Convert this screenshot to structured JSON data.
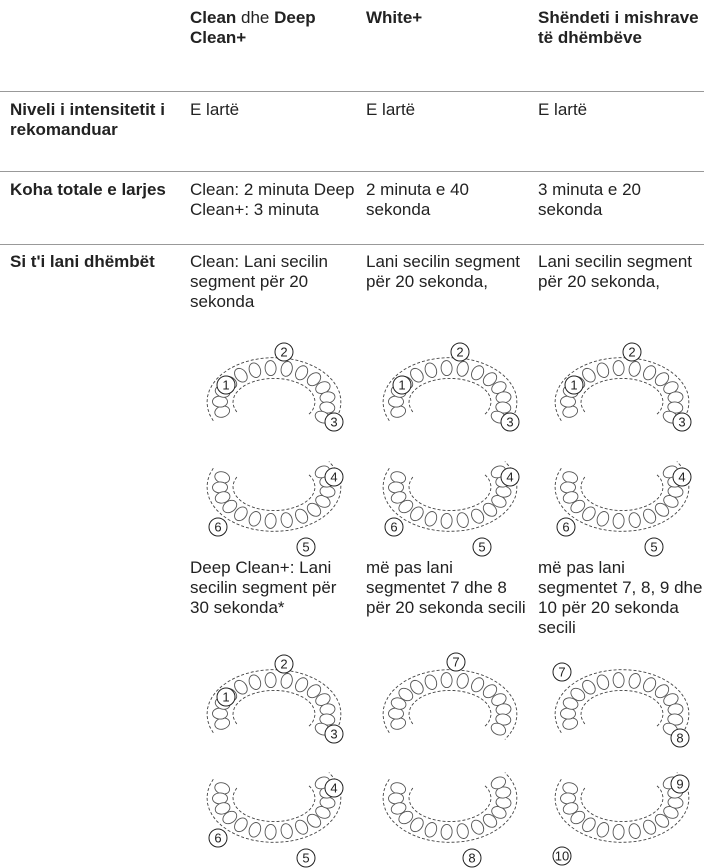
{
  "table": {
    "header": [
      [
        {
          "text": "Clean",
          "bold": true
        },
        {
          "text": " dhe ",
          "bold": false
        },
        {
          "text": "Deep Clean+",
          "bold": true
        }
      ],
      [
        {
          "text": "White+",
          "bold": true
        }
      ],
      [
        {
          "text": "Shëndeti i mishrave të dhëmbëve",
          "bold": true
        }
      ]
    ],
    "rows": [
      {
        "label": "Niveli i intensitetit i rekomanduar",
        "cells": [
          "E lartë",
          "E lartë",
          "E lartë"
        ]
      },
      {
        "label": "Koha totale e larjes",
        "cells": [
          "Clean: 2 minuta Deep Clean+: 3 minuta",
          "2 minuta e 40 sekonda",
          "3 minuta e 20 sekonda"
        ]
      },
      {
        "label": "Si t'i lani dhëmbët",
        "cells": [
          {
            "text1": "Clean: Lani secilin segment për 20 sekonda",
            "diagrams1": [
              [
                "1",
                "2",
                "3"
              ],
              [
                "4",
                "5",
                "6"
              ]
            ],
            "text2": "Deep Clean+: Lani secilin segment për 30 sekonda*",
            "diagrams2": [
              [
                "1",
                "2",
                "3"
              ],
              [
                "4",
                "5",
                "6"
              ]
            ]
          },
          {
            "text1": "Lani secilin segment për 20 sekonda,",
            "diagrams1": [
              [
                "1",
                "2",
                "3"
              ],
              [
                "4",
                "5",
                "6"
              ]
            ],
            "text2": "më pas lani segmentet 7 dhe 8 për 20 sekonda secili",
            "diagrams2": [
              [
                "7"
              ],
              [
                "8"
              ]
            ]
          },
          {
            "text1": "Lani secilin segment për 20 sekonda,",
            "diagrams1": [
              [
                "1",
                "2",
                "3"
              ],
              [
                "4",
                "5",
                "6"
              ]
            ],
            "text2": "më pas lani segmentet 7, 8, 9 dhe 10 për 20 sekonda secili",
            "diagrams2": [
              [
                "7",
                "8"
              ],
              [
                "9",
                "10"
              ]
            ]
          }
        ]
      }
    ]
  }
}
